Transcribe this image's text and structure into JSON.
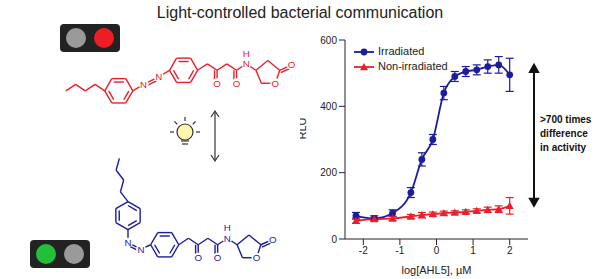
{
  "title": "Light-controlled bacterial communication",
  "structures": [
    {
      "color": "#e8202a",
      "atoms": [
        "N",
        "N",
        "O",
        "O",
        "N",
        "H",
        "O",
        "O"
      ]
    },
    {
      "color": "#1c1c9c",
      "atoms": [
        "N",
        "N",
        "O",
        "O",
        "N",
        "H",
        "O",
        "O"
      ]
    }
  ],
  "chart_data": {
    "type": "line",
    "x_label": "log[AHL5], µM",
    "y_label": "RLU",
    "xlim": [
      -2.5,
      2.5
    ],
    "xticks": [
      -2,
      -1,
      0,
      1,
      2
    ],
    "ylim": [
      0,
      600
    ],
    "yticks": [
      0,
      200,
      400,
      600
    ],
    "legend": "top-left",
    "annotation": [
      ">700 times",
      "difference",
      "in activity"
    ],
    "series": [
      {
        "name": "Irradiated",
        "color": "#1c1c9c",
        "marker": "circle",
        "x": [
          -2.2,
          -1.7,
          -1.2,
          -0.7,
          -0.4,
          -0.1,
          0.2,
          0.5,
          0.8,
          1.1,
          1.4,
          1.7,
          2.0
        ],
        "values": [
          70,
          62,
          78,
          140,
          240,
          300,
          440,
          490,
          505,
          510,
          520,
          525,
          495
        ],
        "errors": [
          10,
          8,
          10,
          15,
          20,
          15,
          20,
          15,
          15,
          15,
          20,
          25,
          50
        ]
      },
      {
        "name": "Non-irradiated",
        "color": "#e8202a",
        "marker": "triangle",
        "x": [
          -2.2,
          -1.7,
          -1.2,
          -0.7,
          -0.4,
          -0.1,
          0.2,
          0.5,
          0.8,
          1.1,
          1.4,
          1.7,
          2.0
        ],
        "values": [
          55,
          60,
          62,
          68,
          72,
          75,
          78,
          80,
          82,
          85,
          88,
          90,
          100
        ],
        "errors": [
          8,
          5,
          6,
          6,
          8,
          6,
          6,
          5,
          6,
          6,
          8,
          10,
          25
        ]
      }
    ]
  }
}
